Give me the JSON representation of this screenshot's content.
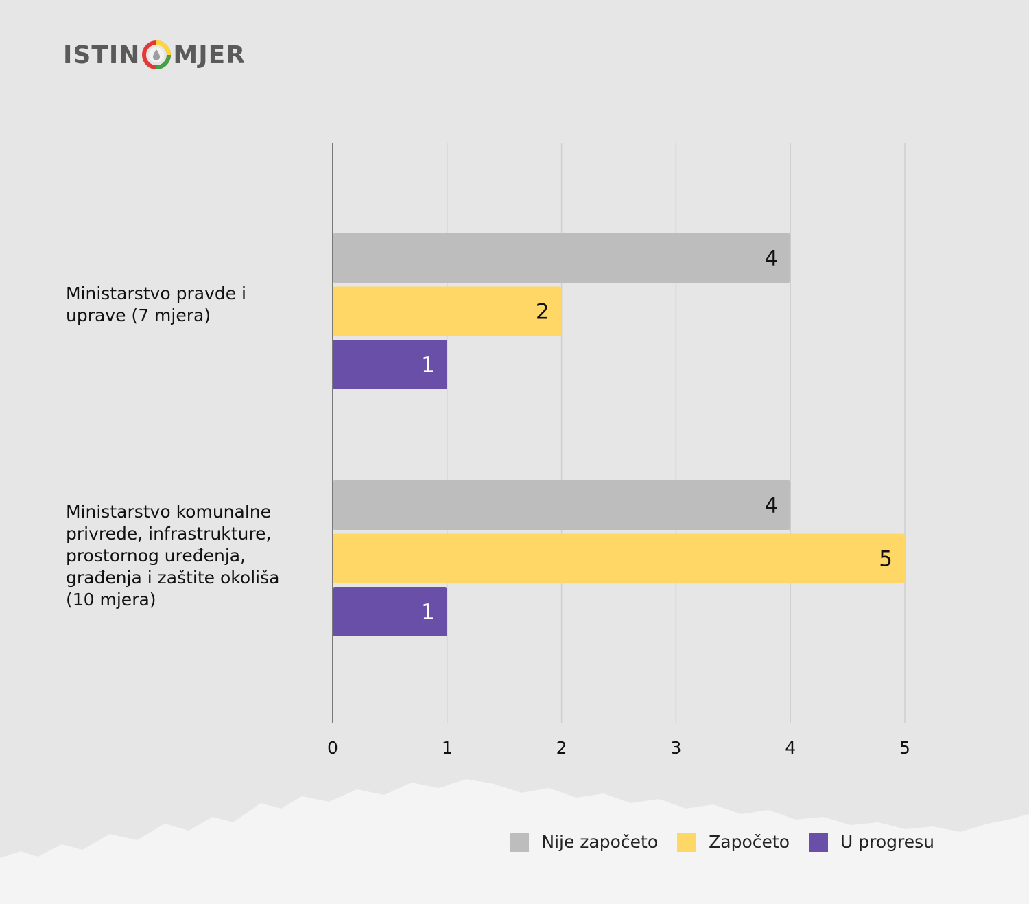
{
  "logo": {
    "text_left": "ISTIN",
    "text_right": "MJER"
  },
  "chart_data": {
    "type": "bar",
    "orientation": "horizontal",
    "categories": [
      "Ministarstvo pravde i\nuprave (7 mjera)",
      "Ministarstvo komunalne\nprivrede, infrastrukture,\nprostornog uređenja,\ngrađenja i zaštite okoliša\n(10 mjera)"
    ],
    "series": [
      {
        "name": "Nije započeto",
        "color": "#bdbdbd",
        "values": [
          4,
          4
        ]
      },
      {
        "name": "Započeto",
        "color": "#fed766",
        "values": [
          2,
          5
        ]
      },
      {
        "name": "U progresu",
        "color": "#6a4fa8",
        "values": [
          1,
          1
        ]
      }
    ],
    "xlim": [
      0,
      5
    ],
    "xticks": [
      "0",
      "1",
      "2",
      "3",
      "4",
      "5"
    ],
    "grid": true,
    "legend_position": "bottom-right",
    "data_labels": true
  }
}
